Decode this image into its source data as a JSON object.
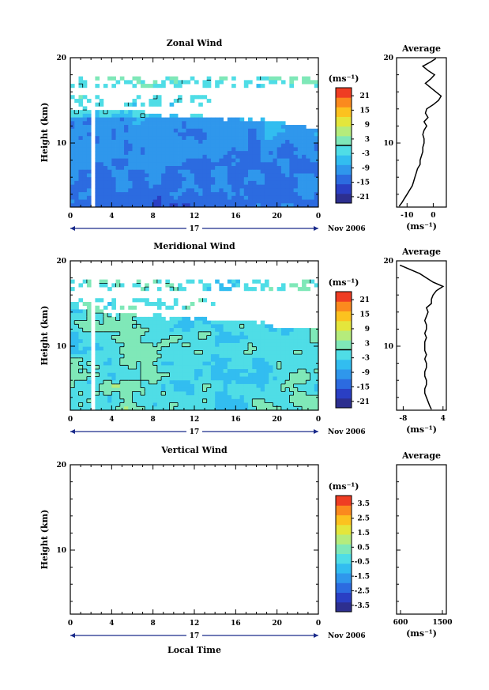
{
  "chart_data": [
    {
      "type": "heatmap",
      "title": "Zonal Wind",
      "ylabel": "Height (km)",
      "y_ticks": [
        "20",
        "10"
      ],
      "ylim": [
        2.5,
        20
      ],
      "x_ticks": [
        "0",
        "4",
        "8",
        "12",
        "16",
        "20",
        "0"
      ],
      "xlim": [
        0,
        24
      ],
      "date_day": "17",
      "date_label": "Nov 2006",
      "colorbar": {
        "unit": "(ms⁻¹)",
        "ticks": [
          "21",
          "15",
          "9",
          "3",
          "-3",
          "-9",
          "-15",
          "-21"
        ],
        "contour_at": "0"
      },
      "profile": {
        "title": "Average",
        "x_ticks": [
          "-10",
          "0"
        ],
        "xlim": [
          -14,
          5
        ],
        "xlabel": "(ms⁻¹)",
        "y_ticks": [
          "20",
          "10"
        ],
        "heights": [
          2.6,
          3.0,
          3.5,
          4.0,
          4.5,
          5.0,
          5.5,
          6.0,
          6.5,
          7.0,
          7.5,
          8.0,
          8.5,
          9.0,
          9.5,
          10.0,
          10.5,
          11.0,
          11.5,
          12.0,
          12.5,
          13.0,
          13.5,
          14.0,
          14.5,
          15.0,
          15.5,
          16.0,
          16.5,
          17.0,
          17.5,
          18.0,
          18.5,
          19.0,
          19.5,
          19.9
        ],
        "values": [
          -13,
          -12,
          -11,
          -10,
          -9,
          -8,
          -7.5,
          -7,
          -6.5,
          -6,
          -5,
          -5,
          -4.5,
          -4,
          -4,
          -3.5,
          -3.5,
          -4,
          -3.5,
          -2.5,
          -3.5,
          -2,
          -3,
          -2.5,
          0,
          2,
          3,
          1,
          -1,
          -3,
          -1,
          0.5,
          -2,
          -4,
          -1,
          1
        ]
      }
    },
    {
      "type": "heatmap",
      "title": "Meridional Wind",
      "ylabel": "Height (km)",
      "y_ticks": [
        "20",
        "10"
      ],
      "ylim": [
        2.5,
        20
      ],
      "x_ticks": [
        "0",
        "4",
        "8",
        "12",
        "16",
        "20",
        "0"
      ],
      "xlim": [
        0,
        24
      ],
      "date_day": "17",
      "date_label": "Nov 2006",
      "colorbar": {
        "unit": "(ms⁻¹)",
        "ticks": [
          "21",
          "15",
          "9",
          "3",
          "-3",
          "-9",
          "-15",
          "-21"
        ],
        "contour_at": "0"
      },
      "profile": {
        "title": "Average",
        "x_ticks": [
          "-8",
          "4"
        ],
        "xlim": [
          -10,
          5
        ],
        "xlabel": "(ms⁻¹)",
        "y_ticks": [
          "20",
          "10"
        ],
        "heights": [
          2.6,
          3.0,
          3.5,
          4.0,
          4.5,
          5.0,
          5.5,
          6.0,
          6.5,
          7.0,
          7.5,
          8.0,
          8.5,
          9.0,
          9.5,
          10.0,
          10.5,
          11.0,
          11.5,
          12.0,
          12.5,
          13.0,
          13.5,
          14.0,
          14.5,
          15.0,
          15.5,
          16.0,
          16.5,
          17.0,
          17.5,
          18.0,
          18.5,
          19.0,
          19.5
        ],
        "values": [
          0.5,
          0.0,
          -0.5,
          -1.0,
          -1.5,
          -1.5,
          -1.0,
          -1.0,
          -1.5,
          -1.5,
          -1.0,
          -1.0,
          -1.5,
          -1.0,
          -1.5,
          -1.5,
          -1.5,
          -1.0,
          -1.5,
          -1.0,
          -1.0,
          -1.5,
          -1.0,
          -0.5,
          -1.0,
          0.5,
          0.5,
          1.0,
          2.0,
          4.0,
          1.0,
          -1.0,
          -3.0,
          -6.0,
          -9.0
        ]
      }
    },
    {
      "type": "heatmap",
      "title": "Vertical Wind",
      "ylabel": "Height (km)",
      "xlabel": "Local Time",
      "y_ticks": [
        "20",
        "10"
      ],
      "ylim": [
        2.5,
        20
      ],
      "x_ticks": [
        "0",
        "4",
        "8",
        "12",
        "16",
        "20",
        "0"
      ],
      "xlim": [
        0,
        24
      ],
      "date_day": "17",
      "date_label": "Nov 2006",
      "colorbar": {
        "unit": "(ms⁻¹)",
        "ticks": [
          "3.5",
          "2.5",
          "1.5",
          "0.5",
          "-0.5",
          "-1.5",
          "-2.5",
          "-3.5"
        ]
      },
      "profile": {
        "title": "Average",
        "x_ticks": [
          "600",
          "1500"
        ],
        "xlabel": "(ms⁻¹)"
      }
    }
  ]
}
